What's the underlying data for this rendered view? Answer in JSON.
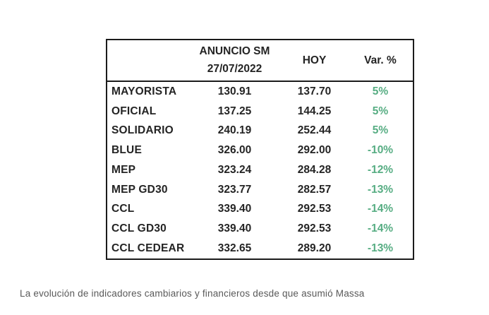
{
  "page": {
    "caption": "La evolución de indicadores cambiarios y financieros desde que asumió Massa"
  },
  "colors": {
    "percent_green": "#57ad83",
    "table_border": "#1b1b1b",
    "table_text": "#242424",
    "caption_text": "#595959"
  },
  "table": {
    "header": {
      "corner": "",
      "anuncio_line1": "ANUNCIO SM",
      "anuncio_line2": "27/07/2022",
      "hoy": "HOY",
      "var": "Var. %"
    },
    "rows": [
      {
        "label": "MAYORISTA",
        "anuncio": "130.91",
        "hoy": "137.70",
        "var": "5%"
      },
      {
        "label": "OFICIAL",
        "anuncio": "137.25",
        "hoy": "144.25",
        "var": "5%"
      },
      {
        "label": "SOLIDARIO",
        "anuncio": "240.19",
        "hoy": "252.44",
        "var": "5%"
      },
      {
        "label": "BLUE",
        "anuncio": "326.00",
        "hoy": "292.00",
        "var": "-10%"
      },
      {
        "label": "MEP",
        "anuncio": "323.24",
        "hoy": "284.28",
        "var": "-12%"
      },
      {
        "label": "MEP GD30",
        "anuncio": "323.77",
        "hoy": "282.57",
        "var": "-13%"
      },
      {
        "label": "CCL",
        "anuncio": "339.40",
        "hoy": "292.53",
        "var": "-14%"
      },
      {
        "label": "CCL GD30",
        "anuncio": "339.40",
        "hoy": "292.53",
        "var": "-14%"
      },
      {
        "label": "CCL CEDEAR",
        "anuncio": "332.65",
        "hoy": "289.20",
        "var": "-13%"
      }
    ]
  },
  "chart_data": {
    "type": "table",
    "columns": [
      "",
      "ANUNCIO SM 27/07/2022",
      "HOY",
      "Var. %"
    ],
    "rows": [
      [
        "MAYORISTA",
        130.91,
        137.7,
        "5%"
      ],
      [
        "OFICIAL",
        137.25,
        144.25,
        "5%"
      ],
      [
        "SOLIDARIO",
        240.19,
        252.44,
        "5%"
      ],
      [
        "BLUE",
        326.0,
        292.0,
        "-10%"
      ],
      [
        "MEP",
        323.24,
        284.28,
        "-12%"
      ],
      [
        "MEP GD30",
        323.77,
        282.57,
        "-13%"
      ],
      [
        "CCL",
        339.4,
        292.53,
        "-14%"
      ],
      [
        "CCL GD30",
        339.4,
        292.53,
        "-14%"
      ],
      [
        "CCL CEDEAR",
        332.65,
        289.2,
        "-13%"
      ]
    ],
    "caption": "La evolución de indicadores cambiarios y financieros desde que asumió Massa",
    "notes": "Positive and negative variation percentages both rendered in green; no inner gridlines, thick outer border and header separator"
  }
}
